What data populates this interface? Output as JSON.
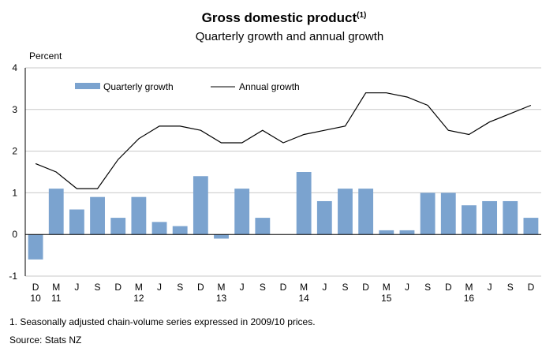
{
  "chart_data": {
    "type": "bar",
    "title": "Gross domestic product",
    "title_superscript": "(1)",
    "subtitle": "Quarterly growth and annual growth",
    "ylabel": "Percent",
    "xlabel": "",
    "ylim": [
      -1,
      4
    ],
    "yticks": [
      4,
      3,
      2,
      1,
      0,
      -1
    ],
    "grid": true,
    "legend_position": "top-left",
    "categories": [
      "D 10",
      "M 11",
      "J 11",
      "S 11",
      "D 11",
      "M 12",
      "J 12",
      "S 12",
      "D 12",
      "M 13",
      "J 13",
      "S 13",
      "D 13",
      "M 14",
      "J 14",
      "S 14",
      "D 14",
      "M 15",
      "J 15",
      "S 15",
      "D 15",
      "M 16",
      "J 16",
      "S 16",
      "D 16"
    ],
    "tick_labels": [
      "D",
      "M",
      "J",
      "S",
      "D",
      "M",
      "J",
      "S",
      "D",
      "M",
      "J",
      "S",
      "D",
      "M",
      "J",
      "S",
      "D",
      "M",
      "J",
      "S",
      "D",
      "M",
      "J",
      "S",
      "D"
    ],
    "year_labels": [
      {
        "index": 0,
        "label": "10"
      },
      {
        "index": 1,
        "label": "11"
      },
      {
        "index": 5,
        "label": "12"
      },
      {
        "index": 9,
        "label": "13"
      },
      {
        "index": 13,
        "label": "14"
      },
      {
        "index": 17,
        "label": "15"
      },
      {
        "index": 21,
        "label": "16"
      }
    ],
    "series": [
      {
        "name": "Quarterly growth",
        "type": "bar",
        "color": "#7ba3cf",
        "values": [
          -0.6,
          1.1,
          0.6,
          0.9,
          0.4,
          0.9,
          0.3,
          0.2,
          1.4,
          -0.1,
          1.1,
          0.4,
          0.0,
          1.5,
          0.8,
          1.1,
          1.1,
          0.1,
          0.1,
          1.0,
          1.0,
          0.7,
          0.8,
          0.8,
          0.4
        ]
      },
      {
        "name": "Annual growth",
        "type": "line",
        "color": "#000000",
        "values": [
          1.7,
          1.5,
          1.1,
          1.1,
          1.8,
          2.3,
          2.6,
          2.6,
          2.5,
          2.2,
          2.2,
          2.5,
          2.2,
          2.4,
          2.5,
          2.6,
          3.4,
          3.4,
          3.3,
          3.1,
          2.5,
          2.4,
          2.7,
          2.9,
          3.1
        ]
      }
    ]
  },
  "footnote": "1. Seasonally adjusted chain-volume series expressed in 2009/10 prices.",
  "source": "Source: Stats NZ"
}
